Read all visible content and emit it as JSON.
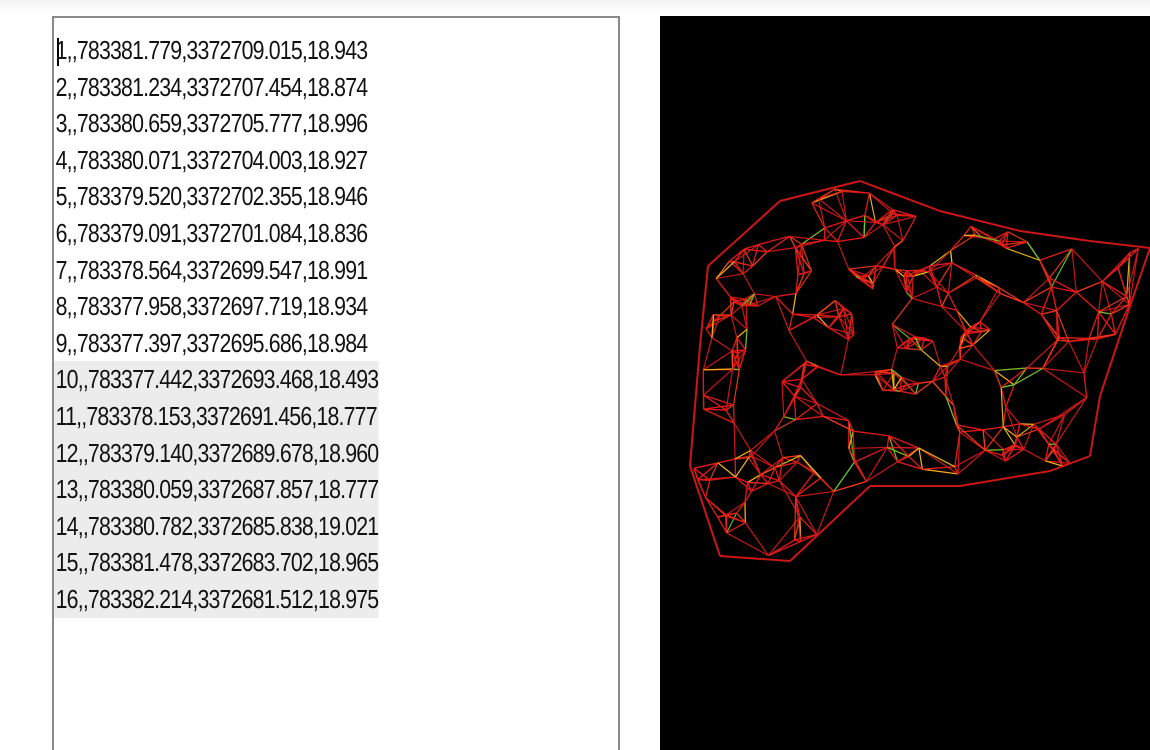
{
  "text_panel": {
    "lines": [
      "1,,783381.779,3372709.015,18.943",
      "2,,783381.234,3372707.454,18.874",
      "3,,783380.659,3372705.777,18.996",
      "4,,783380.071,3372704.003,18.927",
      "5,,783379.520,3372702.355,18.946",
      "6,,783379.091,3372701.084,18.836",
      "7,,783378.564,3372699.547,18.991",
      "8,,783377.958,3372697.719,18.934",
      "9,,783377.397,3372695.686,18.984",
      "10,,783377.442,3372693.468,18.493",
      "11,,783378.153,3372691.456,18.777",
      "12,,783379.140,3372689.678,18.960",
      "13,,783380.059,3372687.857,18.777",
      "14,,783380.782,3372685.838,19.021",
      "15,,783381.478,3372683.702,18.965",
      "16,,783382.214,3372681.512,18.975"
    ]
  },
  "viewport": {
    "background_color": "#000000",
    "mesh_colors": [
      "#e01818",
      "#ff3a1a",
      "#f2c21a",
      "#5fd02a"
    ]
  }
}
